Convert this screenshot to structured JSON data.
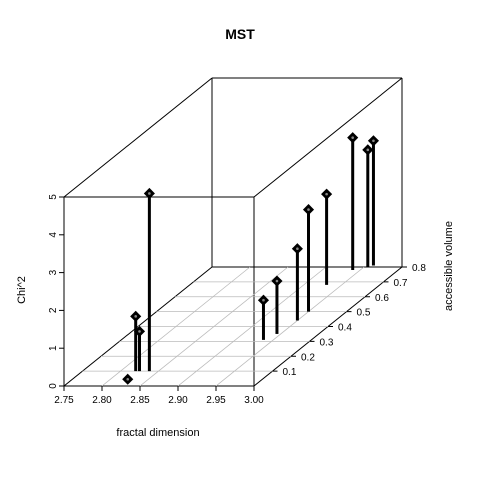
{
  "chart_data": {
    "type": "scatter",
    "subtype": "3d-scatter-with-drop-lines",
    "title": "MST",
    "xlabel": "fractal dimension",
    "ylabel": "accessible volume",
    "zlabel": "Chi^2",
    "xlim": [
      2.75,
      3.0
    ],
    "ylim": [
      0.0,
      0.8
    ],
    "zlim": [
      0,
      5
    ],
    "x_ticks": [
      "2.75",
      "2.80",
      "2.85",
      "2.90",
      "2.95",
      "3.00"
    ],
    "y_ticks": [
      "0.1",
      "0.2",
      "0.3",
      "0.4",
      "0.5",
      "0.6",
      "0.7",
      "0.8"
    ],
    "z_ticks": [
      "0",
      "1",
      "2",
      "3",
      "4",
      "5"
    ],
    "grid": true,
    "drop_lines": true,
    "points": [
      {
        "x": 2.82,
        "y": 0.1,
        "z": 1.45
      },
      {
        "x": 2.825,
        "y": 0.1,
        "z": 1.05
      },
      {
        "x": 2.829,
        "y": 0.02,
        "z": 0.1
      },
      {
        "x": 2.838,
        "y": 0.1,
        "z": 4.7
      },
      {
        "x": 2.937,
        "y": 0.31,
        "z": 1.05
      },
      {
        "x": 2.945,
        "y": 0.35,
        "z": 1.4
      },
      {
        "x": 2.95,
        "y": 0.44,
        "z": 1.9
      },
      {
        "x": 2.95,
        "y": 0.5,
        "z": 2.7
      },
      {
        "x": 2.93,
        "y": 0.68,
        "z": 2.4
      },
      {
        "x": 2.94,
        "y": 0.78,
        "z": 3.5
      },
      {
        "x": 2.955,
        "y": 0.8,
        "z": 3.1
      },
      {
        "x": 2.96,
        "y": 0.81,
        "z": 3.3
      }
    ]
  }
}
